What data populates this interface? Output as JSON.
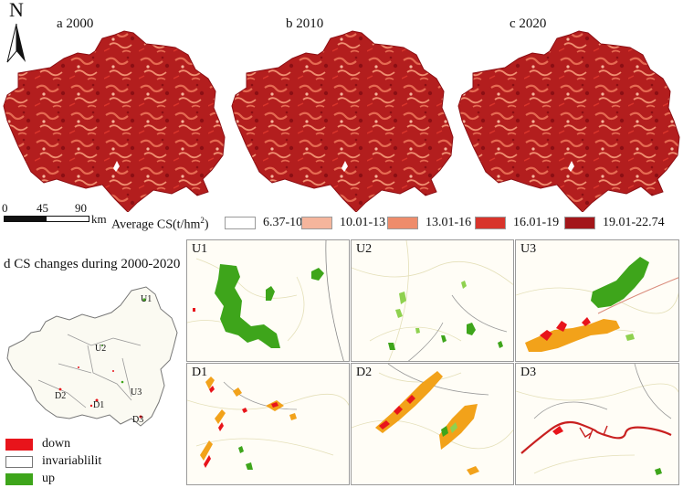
{
  "maps": {
    "a": {
      "title": "a 2000"
    },
    "b": {
      "title": "b 2010"
    },
    "c": {
      "title": "c 2020"
    }
  },
  "north_arrow": {
    "label": "N"
  },
  "scale_bar": {
    "ticks": [
      "0",
      "45",
      "90"
    ],
    "unit": "km"
  },
  "legend": {
    "title": "Average CS(t/hm²)",
    "classes": [
      {
        "label": "6.37-10",
        "color": "#ffffff"
      },
      {
        "label": "10.01-13",
        "color": "#f5b59c"
      },
      {
        "label": "13.01-16",
        "color": "#ee8c6b"
      },
      {
        "label": "16.01-19",
        "color": "#d8342b"
      },
      {
        "label": "19.01-22.74",
        "color": "#a3161a"
      }
    ]
  },
  "change_map": {
    "title": "d CS changes during 2000-2020",
    "site_labels": [
      "U1",
      "U2",
      "U3",
      "D1",
      "D2",
      "D3"
    ],
    "key": [
      {
        "label": "down",
        "color": "#e8141b"
      },
      {
        "label": "invariablilit",
        "color": "#ffffff"
      },
      {
        "label": "up",
        "color": "#3ea51b"
      }
    ]
  },
  "panels": [
    "U1",
    "U2",
    "U3",
    "D1",
    "D2",
    "D3"
  ]
}
